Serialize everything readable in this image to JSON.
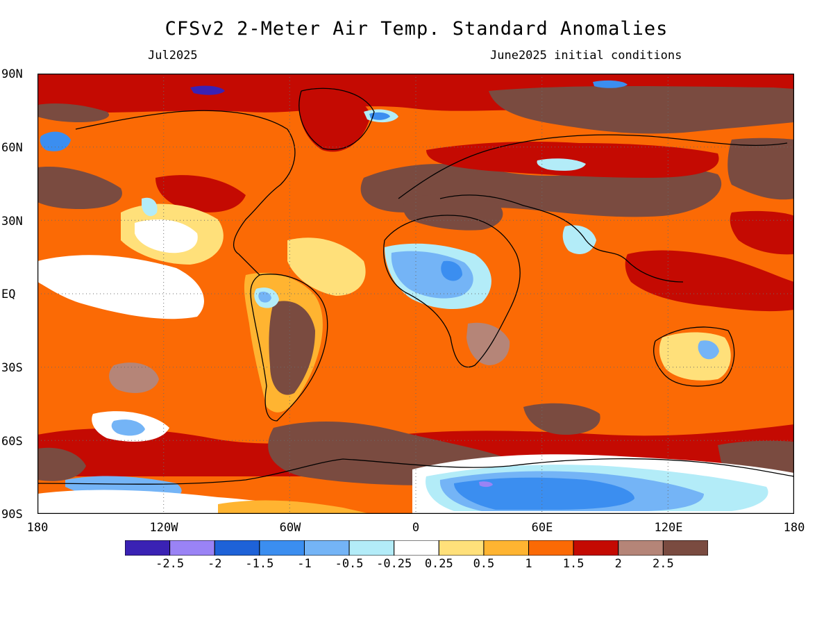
{
  "title": "CFSv2 2-Meter Air Temp. Standard Anomalies",
  "subtitle_left": "Jul2025",
  "subtitle_right": "June2025 initial conditions",
  "lat_labels": [
    "90N",
    "60N",
    "30N",
    "EQ",
    "30S",
    "60S",
    "90S"
  ],
  "lon_labels": [
    "180",
    "120W",
    "60W",
    "0",
    "60E",
    "120E",
    "180"
  ],
  "colorbar": {
    "colors": [
      "#3a22b4",
      "#9a83f5",
      "#1e62d8",
      "#3b8ef0",
      "#74b4f6",
      "#b3ecf8",
      "#ffffff",
      "#ffe07a",
      "#ffb431",
      "#fb6a05",
      "#c40a02",
      "#b58578",
      "#7a4b40"
    ],
    "labels": [
      "-2.5",
      "-2",
      "-1.5",
      "-1",
      "-0.5",
      "-0.25",
      "0.25",
      "0.5",
      "1",
      "1.5",
      "2",
      "2.5"
    ]
  },
  "map": {
    "projection": "cylindrical-equidistant",
    "lon_range": [
      -180,
      180
    ],
    "lat_range": [
      -90,
      90
    ],
    "gridlines": "dotted-30deg",
    "background_anomaly_color": "#fb6a05"
  }
}
